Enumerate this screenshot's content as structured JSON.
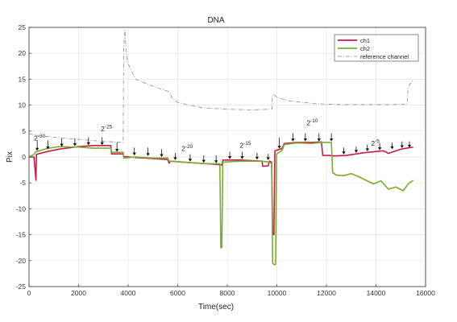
{
  "chart_data": {
    "type": "line",
    "title": "DNA",
    "xlabel": "Time(sec)",
    "ylabel": "Pix",
    "xlim": [
      0,
      16000
    ],
    "ylim": [
      -25,
      25
    ],
    "xticks": [
      0,
      2000,
      4000,
      6000,
      8000,
      10000,
      12000,
      14000,
      16000
    ],
    "yticks": [
      -25,
      -20,
      -15,
      -10,
      -5,
      0,
      5,
      10,
      15,
      20,
      25
    ],
    "grid": true,
    "legend_position": "top-right",
    "series": [
      {
        "name": "ch1",
        "color": "#c8194b",
        "style": "solid",
        "points": [
          [
            0,
            0
          ],
          [
            200,
            0
          ],
          [
            280,
            -4.5
          ],
          [
            300,
            0.5
          ],
          [
            700,
            1
          ],
          [
            1200,
            1.5
          ],
          [
            2000,
            2
          ],
          [
            2600,
            2.2
          ],
          [
            3300,
            2.2
          ],
          [
            3330,
            0.6
          ],
          [
            3800,
            0.6
          ],
          [
            3820,
            0.1
          ],
          [
            4300,
            -0.1
          ],
          [
            5000,
            -0.3
          ],
          [
            5600,
            -0.5
          ],
          [
            5650,
            -1.2
          ],
          [
            5700,
            -0.8
          ],
          [
            6500,
            -1.1
          ],
          [
            7200,
            -1.3
          ],
          [
            7500,
            -1.4
          ],
          [
            7740,
            -1.5
          ],
          [
            7780,
            -1.6
          ],
          [
            7820,
            -0.6
          ],
          [
            8500,
            -0.6
          ],
          [
            9400,
            -0.8
          ],
          [
            9430,
            -1.8
          ],
          [
            9650,
            -1.7
          ],
          [
            9700,
            -0.8
          ],
          [
            9790,
            -1.0
          ],
          [
            9830,
            -14.8
          ],
          [
            9880,
            -15
          ],
          [
            9920,
            1.2
          ],
          [
            10200,
            1.6
          ],
          [
            10300,
            2.6
          ],
          [
            10800,
            2.8
          ],
          [
            11400,
            2.8
          ],
          [
            11800,
            2.9
          ],
          [
            11850,
            0.3
          ],
          [
            12100,
            0.3
          ],
          [
            12300,
            0.2
          ],
          [
            12800,
            0.3
          ],
          [
            13500,
            0.8
          ],
          [
            14300,
            1.2
          ],
          [
            14500,
            0.7
          ],
          [
            15000,
            1.5
          ],
          [
            15500,
            1.9
          ]
        ]
      },
      {
        "name": "ch2",
        "color": "#7aad2e",
        "style": "solid",
        "points": [
          [
            0,
            0
          ],
          [
            200,
            0.5
          ],
          [
            280,
            1
          ],
          [
            700,
            1.6
          ],
          [
            1200,
            2
          ],
          [
            2000,
            1.9
          ],
          [
            2600,
            1.7
          ],
          [
            3300,
            1.7
          ],
          [
            3330,
            0.9
          ],
          [
            3800,
            0.9
          ],
          [
            3820,
            -0.2
          ],
          [
            4300,
            0
          ],
          [
            5000,
            -0.2
          ],
          [
            5600,
            -0.2
          ],
          [
            5650,
            -0.8
          ],
          [
            5700,
            -0.8
          ],
          [
            6500,
            -1.1
          ],
          [
            7200,
            -1.3
          ],
          [
            7700,
            -1.3
          ],
          [
            7740,
            -17.5
          ],
          [
            7780,
            -17.5
          ],
          [
            7820,
            -1
          ],
          [
            8500,
            -0.8
          ],
          [
            9400,
            -0.8
          ],
          [
            9700,
            -1
          ],
          [
            9790,
            -1.2
          ],
          [
            9830,
            -20.5
          ],
          [
            9900,
            -20.8
          ],
          [
            9950,
            -20.7
          ],
          [
            9990,
            0.6
          ],
          [
            10200,
            1.2
          ],
          [
            10300,
            2.4
          ],
          [
            10800,
            2.7
          ],
          [
            11400,
            2.6
          ],
          [
            11800,
            2.8
          ],
          [
            12200,
            2.8
          ],
          [
            12250,
            -3
          ],
          [
            12400,
            -3.5
          ],
          [
            12700,
            -3.6
          ],
          [
            13000,
            -3.2
          ],
          [
            13300,
            -3.8
          ],
          [
            13600,
            -4.5
          ],
          [
            13900,
            -5.2
          ],
          [
            14200,
            -4.6
          ],
          [
            14500,
            -6.2
          ],
          [
            14800,
            -5.8
          ],
          [
            15100,
            -6.5
          ],
          [
            15300,
            -5.2
          ],
          [
            15500,
            -4.5
          ]
        ]
      },
      {
        "name": "reference channel",
        "color": "#8a8a8a",
        "style": "dashdot",
        "points": [
          [
            0,
            4.5
          ],
          [
            300,
            4.2
          ],
          [
            1000,
            3.8
          ],
          [
            2000,
            3.4
          ],
          [
            3000,
            3
          ],
          [
            3800,
            2.8
          ],
          [
            3820,
            21
          ],
          [
            3870,
            24.5
          ],
          [
            3920,
            20
          ],
          [
            4000,
            18
          ],
          [
            4100,
            17
          ],
          [
            4300,
            15
          ],
          [
            4800,
            14
          ],
          [
            5400,
            13
          ],
          [
            5650,
            12.6
          ],
          [
            5700,
            12.5
          ],
          [
            5750,
            11.5
          ],
          [
            6000,
            10.5
          ],
          [
            7000,
            9.5
          ],
          [
            8000,
            9.2
          ],
          [
            9000,
            9.1
          ],
          [
            9800,
            9.2
          ],
          [
            9820,
            11.8
          ],
          [
            9900,
            12
          ],
          [
            10000,
            11.5
          ],
          [
            10500,
            10.8
          ],
          [
            11500,
            10.3
          ],
          [
            12500,
            10.1
          ],
          [
            13500,
            10.1
          ],
          [
            14500,
            10.1
          ],
          [
            15250,
            10.2
          ],
          [
            15300,
            13.5
          ],
          [
            15500,
            15
          ]
        ]
      }
    ],
    "annotations": [
      {
        "base": "2",
        "exp": "-30",
        "x": 200,
        "y": 3.2
      },
      {
        "base": "2",
        "exp": "-25",
        "x": 2900,
        "y": 5
      },
      {
        "base": "2",
        "exp": "-20",
        "x": 6150,
        "y": 1.2
      },
      {
        "base": "2",
        "exp": "-15",
        "x": 8500,
        "y": 1.8
      },
      {
        "base": "2",
        "exp": "-10",
        "x": 11200,
        "y": 6.1
      },
      {
        "base": "2",
        "exp": "-5",
        "x": 13800,
        "y": 2.2
      }
    ],
    "arrows": [
      {
        "x": 330,
        "y_top": 3.2,
        "y_bot": 1.2
      },
      {
        "x": 760,
        "y_top": 3.2,
        "y_bot": 1.5
      },
      {
        "x": 1320,
        "y_top": 3.6,
        "y_bot": 2
      },
      {
        "x": 1850,
        "y_top": 3.6,
        "y_bot": 2.1
      },
      {
        "x": 2400,
        "y_top": 3.8,
        "y_bot": 2.3
      },
      {
        "x": 2950,
        "y_top": 3.8,
        "y_bot": 2.3
      },
      {
        "x": 3550,
        "y_top": 2.8,
        "y_bot": 1
      },
      {
        "x": 4250,
        "y_top": 1.8,
        "y_bot": 0.3
      },
      {
        "x": 4800,
        "y_top": 1.8,
        "y_bot": 0.2
      },
      {
        "x": 5350,
        "y_top": 1.5,
        "y_bot": 0
      },
      {
        "x": 5900,
        "y_top": 0.8,
        "y_bot": -0.6
      },
      {
        "x": 6500,
        "y_top": 0.5,
        "y_bot": -0.9
      },
      {
        "x": 7050,
        "y_top": 0.3,
        "y_bot": -1.1
      },
      {
        "x": 7550,
        "y_top": 0.3,
        "y_bot": -1.2
      },
      {
        "x": 8100,
        "y_top": 1,
        "y_bot": -0.4
      },
      {
        "x": 8600,
        "y_top": 1,
        "y_bot": -0.4
      },
      {
        "x": 9200,
        "y_top": 0.8,
        "y_bot": -0.5
      },
      {
        "x": 9650,
        "y_top": 0.6,
        "y_bot": -0.6
      },
      {
        "x": 10100,
        "y_top": 3.7,
        "y_bot": 1.6
      },
      {
        "x": 10650,
        "y_top": 4.6,
        "y_bot": 3
      },
      {
        "x": 11150,
        "y_top": 4.6,
        "y_bot": 3
      },
      {
        "x": 11700,
        "y_top": 4.6,
        "y_bot": 3
      },
      {
        "x": 12200,
        "y_top": 4.6,
        "y_bot": 3
      },
      {
        "x": 12700,
        "y_top": 1.8,
        "y_bot": 0.5
      },
      {
        "x": 13200,
        "y_top": 2,
        "y_bot": 0.8
      },
      {
        "x": 13650,
        "y_top": 2.4,
        "y_bot": 1.1
      },
      {
        "x": 14150,
        "y_top": 2.7,
        "y_bot": 1.3
      },
      {
        "x": 14650,
        "y_top": 2.8,
        "y_bot": 1.5
      },
      {
        "x": 15050,
        "y_top": 3,
        "y_bot": 1.7
      },
      {
        "x": 15350,
        "y_top": 3,
        "y_bot": 1.8
      }
    ]
  }
}
